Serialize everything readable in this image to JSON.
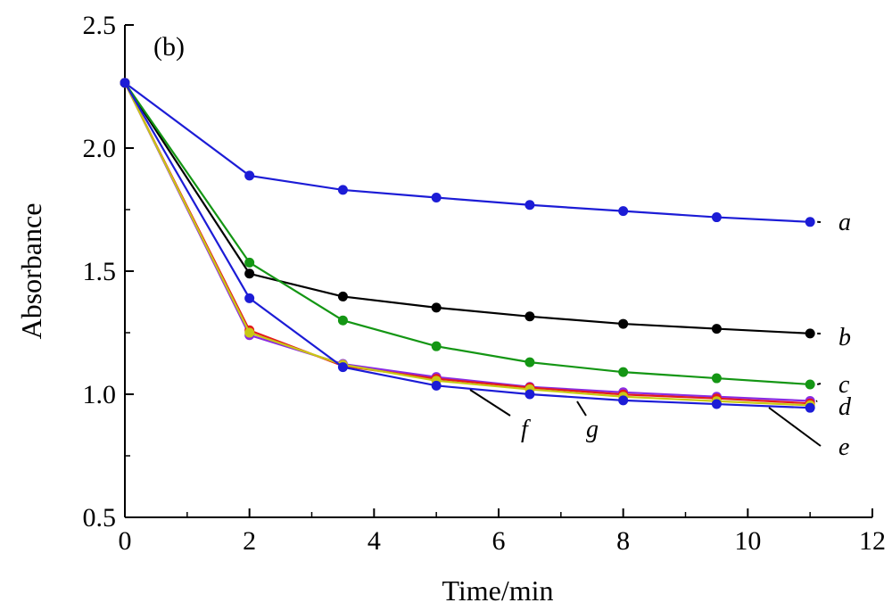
{
  "chart_data": {
    "type": "line",
    "panel_label": "(b)",
    "xlabel": "Time/min",
    "ylabel": "Absorbance",
    "xlim": [
      0,
      12
    ],
    "ylim": [
      0.5,
      2.5
    ],
    "x_ticks": [
      "0",
      "2",
      "4",
      "6",
      "8",
      "10",
      "12"
    ],
    "y_ticks": [
      "0.5",
      "1.0",
      "1.5",
      "2.0",
      "2.5"
    ],
    "grid": false,
    "x": [
      0,
      2,
      3.5,
      5,
      6.5,
      8,
      9.5,
      11
    ],
    "series": [
      {
        "name": "a",
        "color": "#1c1cd6",
        "values": [
          2.265,
          1.888,
          1.83,
          1.799,
          1.769,
          1.744,
          1.719,
          1.7
        ]
      },
      {
        "name": "b",
        "color": "#000000",
        "values": [
          2.265,
          1.49,
          1.397,
          1.352,
          1.316,
          1.286,
          1.266,
          1.247
        ]
      },
      {
        "name": "c",
        "color": "#149614",
        "values": [
          2.265,
          1.535,
          1.3,
          1.195,
          1.13,
          1.09,
          1.065,
          1.04
        ]
      },
      {
        "name": "d",
        "color": "#8a2be2",
        "values": [
          2.265,
          1.24,
          1.123,
          1.07,
          1.03,
          1.008,
          0.99,
          0.973
        ]
      },
      {
        "name": "e",
        "color": "#e41a1c",
        "values": [
          2.265,
          1.26,
          1.115,
          1.063,
          1.027,
          0.999,
          0.983,
          0.963
        ]
      },
      {
        "name": "f",
        "color": "#c8c814",
        "values": [
          2.265,
          1.25,
          1.12,
          1.055,
          1.02,
          0.99,
          0.972,
          0.955
        ]
      },
      {
        "name": "g",
        "color": "#1c1cd6",
        "values": [
          2.265,
          1.39,
          1.11,
          1.035,
          1.0,
          0.975,
          0.96,
          0.945
        ]
      }
    ]
  }
}
